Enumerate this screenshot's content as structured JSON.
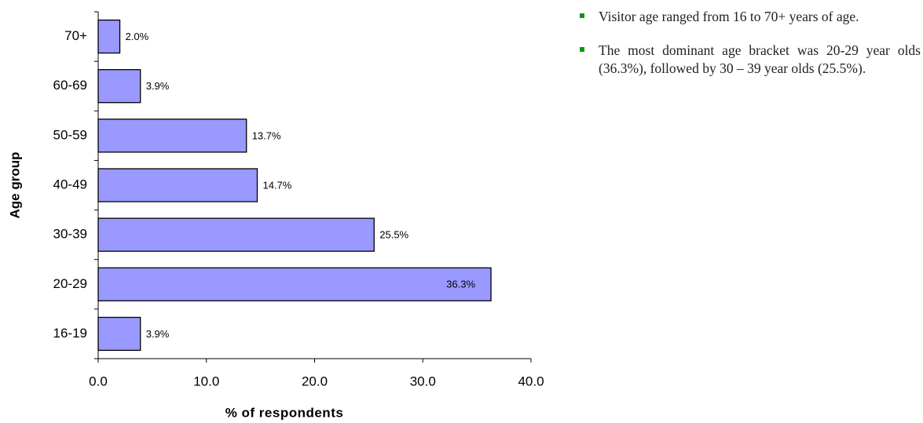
{
  "chart_data": {
    "type": "bar",
    "orientation": "horizontal",
    "categories": [
      "16-19",
      "20-29",
      "30-39",
      "40-49",
      "50-59",
      "60-69",
      "70+"
    ],
    "values": [
      3.9,
      36.3,
      25.5,
      14.7,
      13.7,
      3.9,
      2.0
    ],
    "value_labels": [
      "3.9%",
      "36.3%",
      "25.5%",
      "14.7%",
      "13.7%",
      "3.9%",
      "2.0%"
    ],
    "color": "#9999ff",
    "xlim": [
      0,
      40
    ],
    "xticks": [
      {
        "value": 0,
        "label": "0.0"
      },
      {
        "value": 10,
        "label": "10.0"
      },
      {
        "value": 20,
        "label": "20.0"
      },
      {
        "value": 30,
        "label": "30.0"
      },
      {
        "value": 40,
        "label": "40.0"
      }
    ],
    "x_label": "% of respondents",
    "y_label": "Age group",
    "grid": false
  },
  "bullets": [
    "Visitor age ranged from 16 to 70+ years of age.",
    "The most dominant age bracket was 20-29 year olds (36.3%), followed by 30 – 39 year olds (25.5%)."
  ]
}
